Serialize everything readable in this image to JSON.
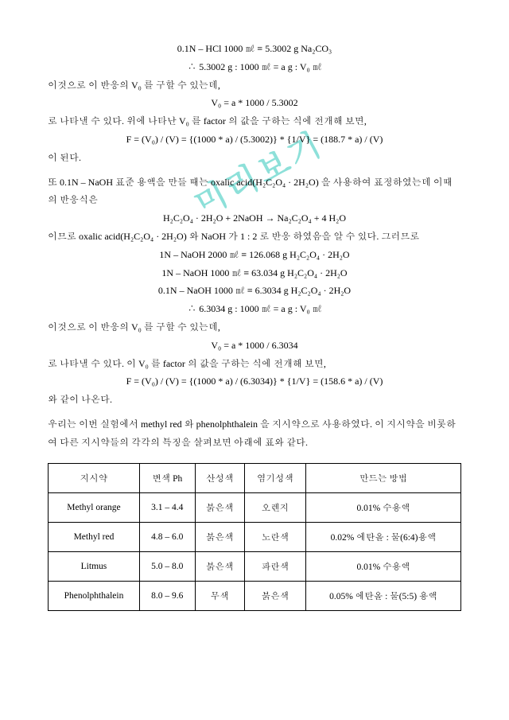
{
  "watermark": "미리보기",
  "equations": {
    "eq1": "0.1N – HCl 1000 ㎖ ≡ 5.3002 g Na₂CO₃",
    "eq2": "∴ 5.3002 g : 1000 ㎖  = a g : V₀ ㎖",
    "line1": "이것으로 이 반응의 V₀ 를 구할 수 있는데,",
    "eq3": "V₀ = a * 1000 / 5.3002",
    "line2": "로 나타낼 수 있다. 위에 나타난 V₀ 를 factor 의 값을 구하는 식에 전개해 보면,",
    "eq4": "F = (V₀) / (V) = {(1000 * a) / (5.3002)} * {1/V} = (188.7 * a) / (V)",
    "line3": "이 된다.",
    "para2": " 또 0.1N – NaOH 표준 용액을 만들 때는 oxalic acid(H₂C₂O₄ · 2H₂O) 을 사용하여 표정하였는데 이때의 반응식은",
    "eq5": "H₂C₂O₄ · 2H₂O   +   2NaOH   →   Na₂C₂O₄  +    4 H₂O",
    "line4": "이므로 oxalic acid(H₂C₂O₄ · 2H₂O) 와 NaOH 가 1 : 2 로 반응 하였음을 알 수 있다. 그러므로",
    "eq6": "1N – NaOH 2000 ㎖ ≡ 126.068 g H₂C₂O₄ · 2H₂O",
    "eq7": "1N – NaOH 1000 ㎖ ≡ 63.034 g H₂C₂O₄ · 2H₂O",
    "eq8": "0.1N – NaOH 1000 ㎖ ≡ 6.3034 g H₂C₂O₄ · 2H₂O",
    "eq9": "∴ 6.3034 g : 1000 ㎖ = a g : V₀ ㎖",
    "line5": "이것으로 이 반응의 V₀ 를 구할 수 있는데,",
    "eq10": "V₀ = a * 1000 / 6.3034",
    "line6": "로 나타낼 수 있다. 이 V₀ 를 factor 의 값을 구하는 식에 전개해 보면,",
    "eq11": "F = (V₀) / (V) = {(1000 * a) / (6.3034)} * {1/V} = (158.6 * a) / (V)",
    "line7": "와 같이 나온다.",
    "para3": " 우리는 이번 실험에서 methyl red 와 phenolphthalein 을 지시약으로 사용하였다. 이 지시약을 비롯하여 다른 지시약들의 각각의 특징을 살펴보면 아래에 표와 같다."
  },
  "table": {
    "headers": [
      "지시약",
      "변색 Ph",
      "산성색",
      "염기성색",
      "만드는 방법"
    ],
    "rows": [
      [
        "Methyl orange",
        "3.1 – 4.4",
        "붉은색",
        "오렌지",
        "0.01% 수용액"
      ],
      [
        "Methyl red",
        "4.8 – 6.0",
        "붉은색",
        "노란색",
        "0.02% 에탄올 : 물(6:4)용액"
      ],
      [
        "Litmus",
        "5.0 – 8.0",
        "붉은색",
        "파란색",
        "0.01% 수용액"
      ],
      [
        "Phenolphthalein",
        "8.0 – 9.6",
        "무색",
        "붉은색",
        "0.05% 에탄올 : 물(5:5) 용액"
      ]
    ]
  }
}
